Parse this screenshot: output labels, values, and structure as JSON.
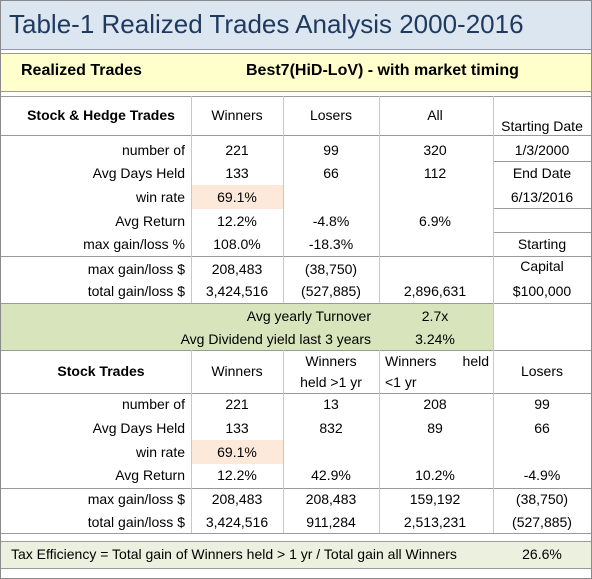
{
  "title": "Table-1   Realized Trades Analysis  2000-2016",
  "subtitle": {
    "label": "Realized Trades",
    "strategy": "Best7(HiD-LoV) - with market timing"
  },
  "stock_hedge": {
    "header": [
      "Stock & Hedge Trades",
      "Winners",
      "Losers",
      "All"
    ],
    "rows": [
      [
        "number of",
        "221",
        "99",
        "320"
      ],
      [
        "Avg Days Held",
        "133",
        "66",
        "112"
      ],
      [
        "win rate",
        "69.1%",
        null,
        null
      ],
      [
        "Avg Return",
        "12.2%",
        "-4.8%",
        "6.9%"
      ],
      [
        "max gain/loss %",
        "108.0%",
        "-18.3%",
        null
      ],
      [
        "max gain/loss $",
        "208,483",
        "(38,750)",
        null
      ],
      [
        "total gain/loss $",
        "3,424,516",
        "(527,885)",
        "2,896,631"
      ]
    ]
  },
  "side_info": [
    "Starting Date",
    "1/3/2000",
    "End Date",
    "6/13/2016",
    "Starting",
    "Capital",
    "$100,000"
  ],
  "summary": [
    [
      "Avg yearly Turnover",
      "2.7x"
    ],
    [
      "Avg Dividend yield last 3 years",
      "3.24%"
    ]
  ],
  "stock": {
    "header": [
      "Stock Trades",
      "Winners",
      [
        "Winners",
        "held >1 yr"
      ],
      [
        "Winners",
        "held",
        "<1 yr"
      ],
      "Losers"
    ],
    "rows": [
      [
        "number of",
        "221",
        "13",
        "208",
        "99"
      ],
      [
        "Avg Days Held",
        "133",
        "832",
        "89",
        "66"
      ],
      [
        "win rate",
        "69.1%",
        null,
        null,
        null
      ],
      [
        "Avg Return",
        "12.2%",
        "42.9%",
        "10.2%",
        "-4.9%"
      ],
      [
        "max gain/loss $",
        "208,483",
        "208,483",
        "159,192",
        "(38,750)"
      ],
      [
        "total gain/loss $",
        "3,424,516",
        "911,284",
        "2,513,231",
        "(527,885)"
      ]
    ]
  },
  "footer": {
    "label": "Tax Efficiency = Total gain of Winners held > 1 yr / Total gain all Winners",
    "value": "26.6%"
  }
}
